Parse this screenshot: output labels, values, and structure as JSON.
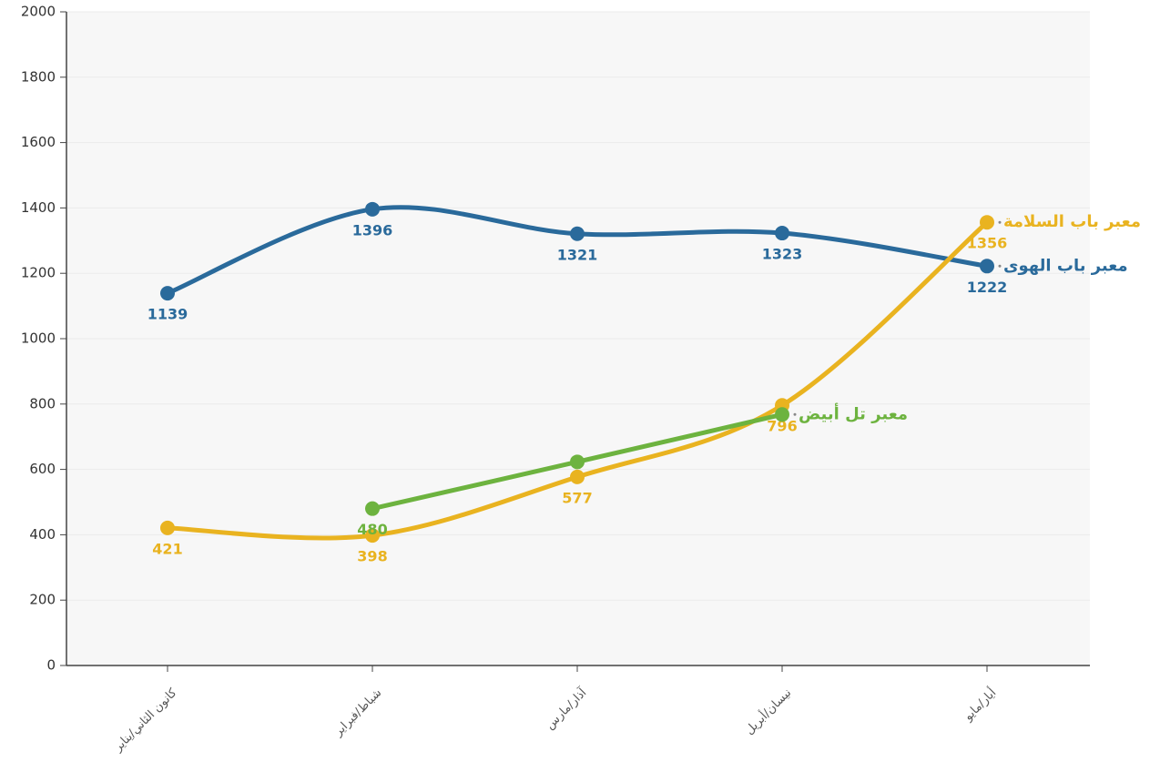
{
  "chart_data": {
    "type": "line",
    "categories": [
      "كانون الثاني/يناير",
      "شباط/فبراير",
      "آذار/مارس",
      "نيسان/أبريل",
      "أيار/مايو"
    ],
    "series": [
      {
        "name": "معبر باب الهوى",
        "color": "#2a6a9b",
        "values": [
          1139,
          1396,
          1321,
          1323,
          1222
        ]
      },
      {
        "name": "معبر باب السلامة",
        "color": "#e9b320",
        "values": [
          421,
          398,
          577,
          796,
          1356
        ]
      },
      {
        "name": "معبر تل أبيض",
        "color": "#6db33f",
        "values": [
          null,
          480,
          623,
          768,
          null
        ],
        "value_labels": [
          null,
          "480",
          null,
          null,
          null
        ]
      }
    ],
    "ylim": [
      0,
      2000
    ],
    "yticks": [
      0,
      200,
      400,
      600,
      800,
      1000,
      1200,
      1400,
      1600,
      1800,
      2000
    ],
    "grid": true
  }
}
